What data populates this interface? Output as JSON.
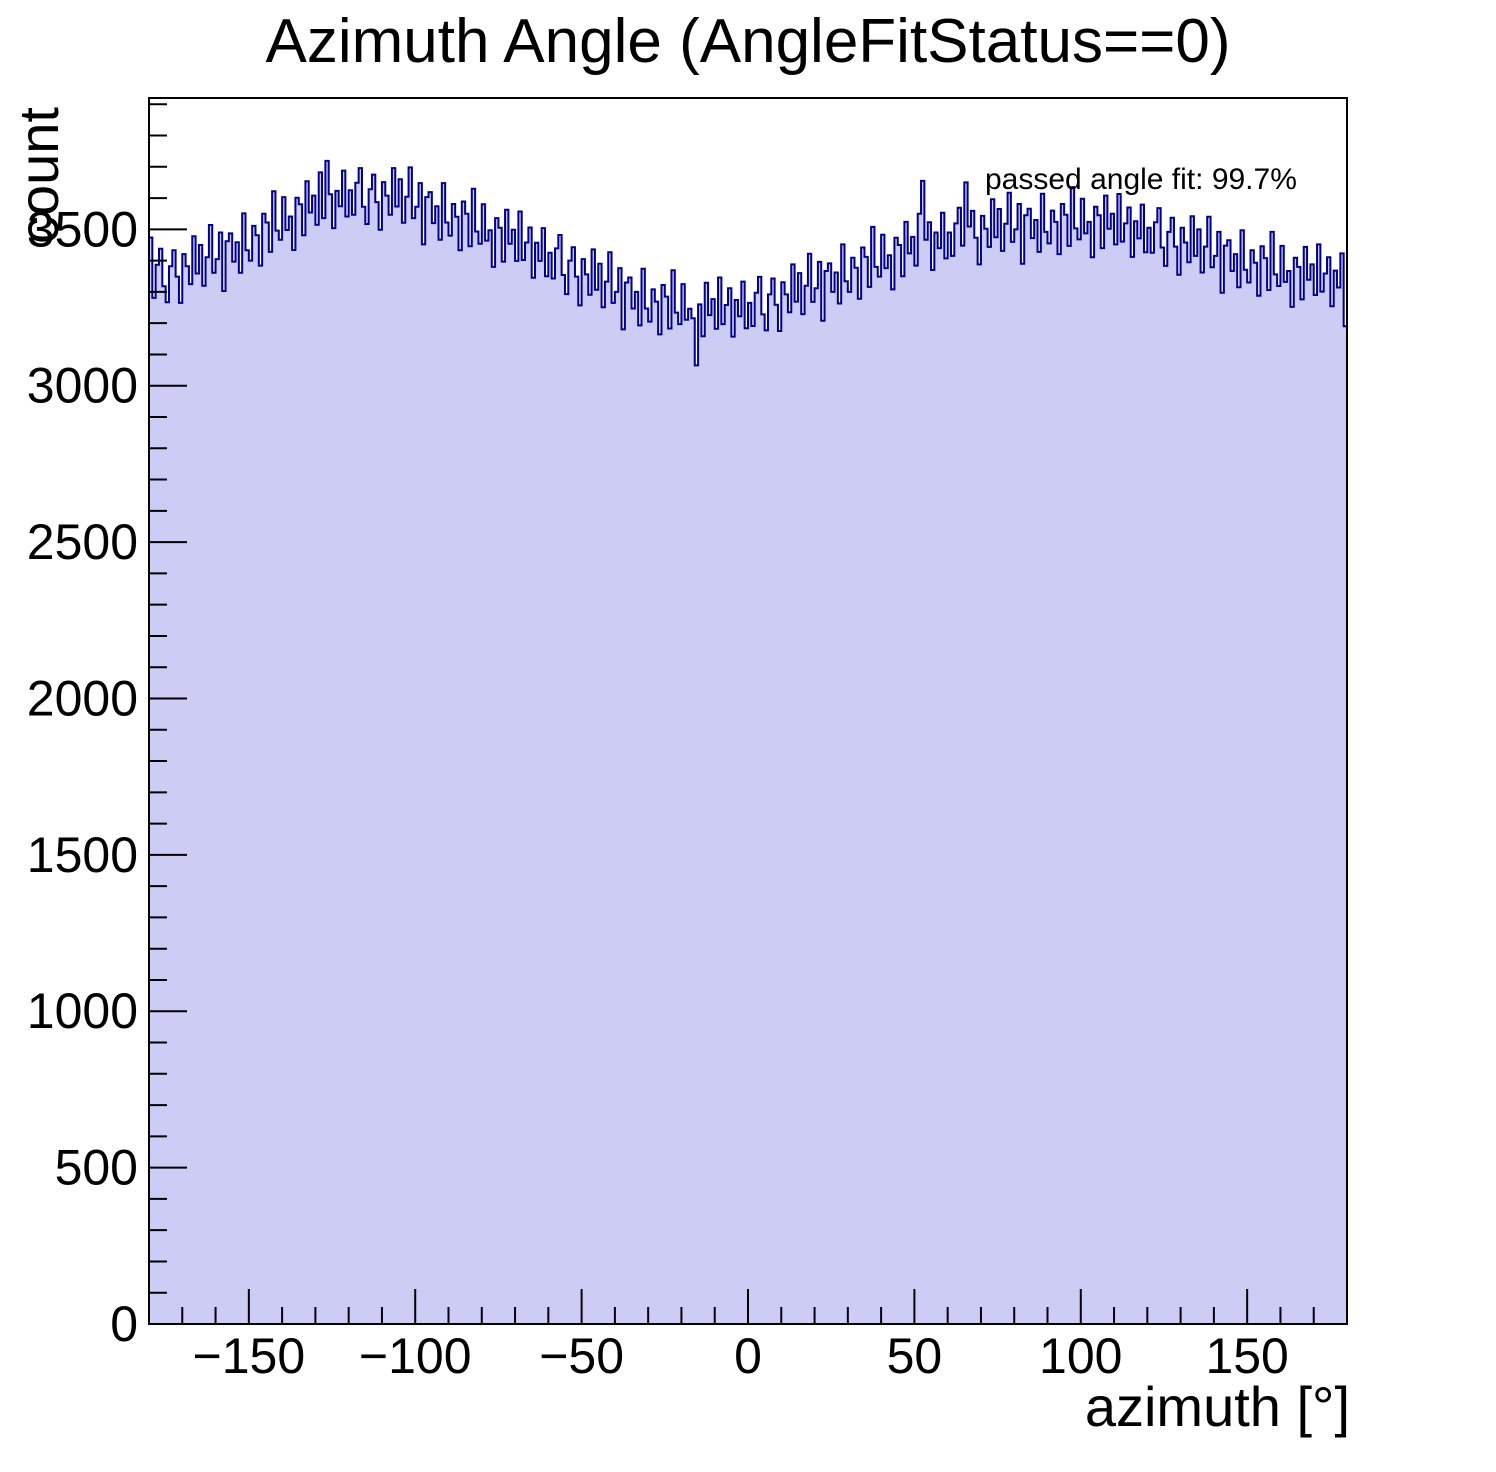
{
  "page": {
    "background": "#ffffff"
  },
  "chart_data": {
    "type": "bar",
    "subtype": "step-histogram",
    "title": "Azimuth Angle (AngleFitStatus==0)",
    "xlabel": "azimuth [°]",
    "ylabel": "count",
    "annotation": "passed angle fit: 99.7%",
    "xlim": [
      -180,
      180
    ],
    "ylim": [
      0,
      3920
    ],
    "bin_width_deg": 1,
    "x_major_ticks": [
      -150,
      -100,
      -50,
      0,
      50,
      100,
      150
    ],
    "x_tick_labels": [
      "−150",
      "−100",
      "−50",
      "0",
      "50",
      "100",
      "150"
    ],
    "x_minor_step": 10,
    "y_major_ticks": [
      0,
      500,
      1000,
      1500,
      2000,
      2500,
      3000,
      3500
    ],
    "y_tick_labels": [
      "0",
      "500",
      "1000",
      "1500",
      "2000",
      "2500",
      "3000",
      "3500"
    ],
    "y_minor_step": 100,
    "grid": false,
    "legend": "none",
    "colors": {
      "fill": "#ccccf5",
      "line": "#00008b",
      "axis": "#000000",
      "text": "#000000"
    },
    "values": [
      3474,
      3281,
      3387,
      3438,
      3318,
      3267,
      3382,
      3433,
      3349,
      3265,
      3421,
      3382,
      3325,
      3478,
      3359,
      3450,
      3320,
      3411,
      3514,
      3361,
      3405,
      3490,
      3303,
      3462,
      3487,
      3397,
      3459,
      3361,
      3551,
      3433,
      3400,
      3511,
      3481,
      3384,
      3550,
      3522,
      3428,
      3622,
      3496,
      3467,
      3603,
      3498,
      3541,
      3434,
      3601,
      3580,
      3481,
      3654,
      3554,
      3608,
      3515,
      3682,
      3536,
      3719,
      3612,
      3504,
      3623,
      3574,
      3688,
      3541,
      3625,
      3547,
      3649,
      3696,
      3572,
      3517,
      3628,
      3675,
      3587,
      3499,
      3651,
      3608,
      3547,
      3696,
      3573,
      3660,
      3521,
      3604,
      3698,
      3536,
      3572,
      3648,
      3452,
      3603,
      3619,
      3520,
      3574,
      3467,
      3648,
      3522,
      3480,
      3581,
      3540,
      3433,
      3589,
      3550,
      3446,
      3630,
      3493,
      3454,
      3580,
      3464,
      3497,
      3380,
      3536,
      3505,
      3397,
      3563,
      3454,
      3499,
      3399,
      3557,
      3402,
      3458,
      3506,
      3345,
      3457,
      3399,
      3504,
      3350,
      3425,
      3343,
      3439,
      3482,
      3354,
      3293,
      3400,
      3443,
      3349,
      3257,
      3405,
      3356,
      3291,
      3436,
      3307,
      3390,
      3251,
      3333,
      3427,
      3265,
      3300,
      3376,
      3180,
      3330,
      3346,
      3247,
      3300,
      3193,
      3374,
      3247,
      3205,
      3308,
      3269,
      3164,
      3322,
      3285,
      3183,
      3369,
      3234,
      3197,
      3325,
      3211,
      3246,
      3216,
      3065,
      3260,
      3158,
      3329,
      3226,
      3277,
      3182,
      3346,
      3197,
      3258,
      3312,
      3157,
      3274,
      3222,
      3333,
      3184,
      3265,
      3191,
      3297,
      3348,
      3228,
      3177,
      3292,
      3343,
      3259,
      3175,
      3331,
      3292,
      3235,
      3388,
      3269,
      3360,
      3229,
      3320,
      3422,
      3268,
      3312,
      3396,
      3208,
      3367,
      3391,
      3300,
      3362,
      3263,
      3452,
      3334,
      3300,
      3409,
      3377,
      3278,
      3442,
      3412,
      3316,
      3508,
      3380,
      3349,
      3483,
      3376,
      3417,
      3308,
      3473,
      3450,
      3350,
      3524,
      3423,
      3476,
      3384,
      3550,
      3655,
      3467,
      3523,
      3370,
      3490,
      3440,
      3553,
      3407,
      3490,
      3415,
      3519,
      3569,
      3448,
      3650,
      3509,
      3559,
      3473,
      3388,
      3543,
      3502,
      3444,
      3596,
      3475,
      3565,
      3431,
      3518,
      3617,
      3460,
      3500,
      3581,
      3390,
      3545,
      3566,
      3472,
      3530,
      3428,
      3614,
      3492,
      3455,
      3560,
      3524,
      3421,
      3581,
      3547,
      3447,
      3635,
      3503,
      3468,
      3598,
      3487,
      3524,
      3411,
      3572,
      3545,
      3440,
      3608,
      3502,
      3550,
      3452,
      3613,
      3461,
      3519,
      3570,
      3412,
      3526,
      3471,
      3579,
      3427,
      3505,
      3425,
      3523,
      3568,
      3442,
      3383,
      3492,
      3537,
      3445,
      3355,
      3505,
      3458,
      3395,
      3542,
      3415,
      3500,
      3362,
      3445,
      3540,
      3379,
      3415,
      3492,
      3297,
      3448,
      3465,
      3367,
      3421,
      3315,
      3497,
      3371,
      3330,
      3433,
      3393,
      3288,
      3446,
      3408,
      3306,
      3492,
      3356,
      3319,
      3447,
      3332,
      3367,
      3252,
      3409,
      3380,
      3276,
      3444,
      3339,
      3388,
      3290,
      3452,
      3301,
      3359,
      3411,
      3254,
      3368,
      3314,
      3423,
      3190
    ]
  }
}
